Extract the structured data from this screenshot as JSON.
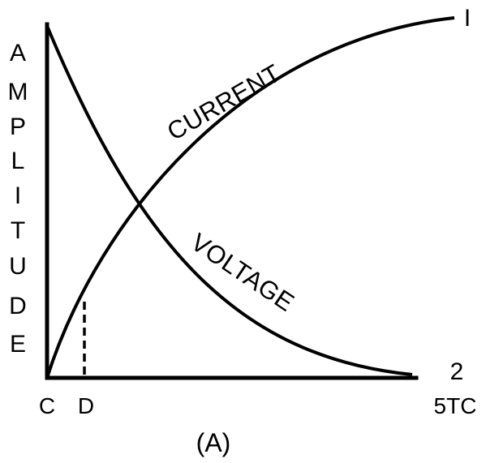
{
  "figure": {
    "y_axis_label_letters": [
      "A",
      "M",
      "P",
      "L",
      "I",
      "T",
      "U",
      "D",
      "E"
    ],
    "x_axis_ticks": {
      "origin": "C",
      "marker": "D",
      "end": "5TC"
    },
    "curves": {
      "current": {
        "label": "CURRENT",
        "end_number": "I"
      },
      "voltage": {
        "label": "VOLTAGE",
        "end_number": "2"
      }
    },
    "caption": "(A)",
    "colors": {
      "ink": "#000000",
      "background": "#ffffff"
    }
  }
}
